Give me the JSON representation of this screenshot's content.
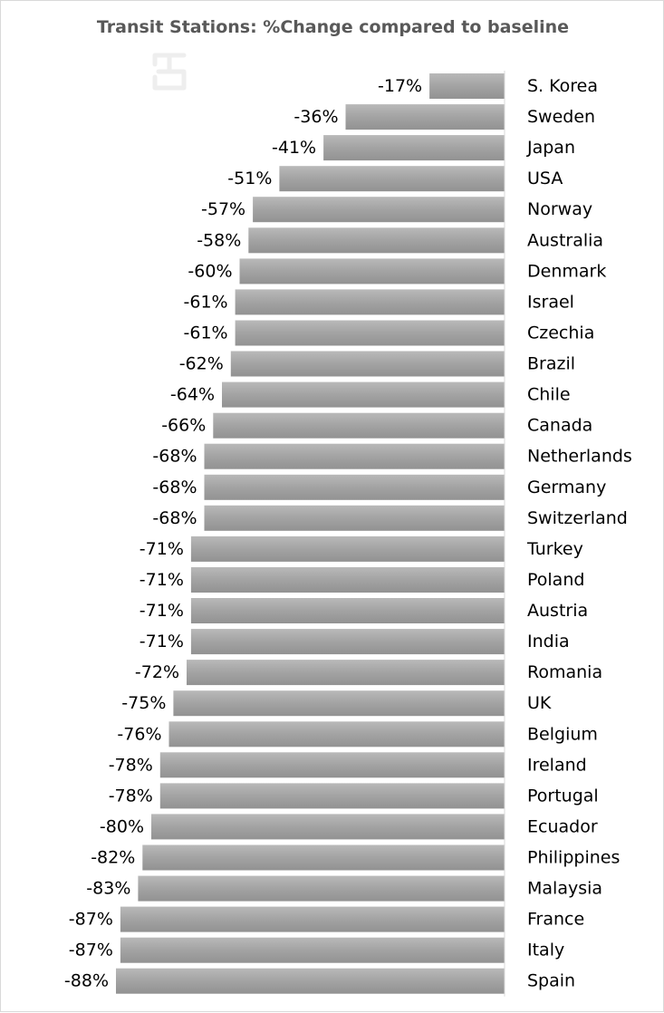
{
  "chart_data": {
    "type": "bar",
    "orientation": "horizontal",
    "title": "Transit Stations: %Change compared to baseline",
    "xlabel": "",
    "ylabel": "",
    "value_format": "percent",
    "xlim": [
      -100,
      0
    ],
    "grid": false,
    "legend": "none",
    "bar_color": "#a6a6a6",
    "categories": [
      "S. Korea",
      "Sweden",
      "Japan",
      "USA",
      "Norway",
      "Australia",
      "Denmark",
      "Israel",
      "Czechia",
      "Brazil",
      "Chile",
      "Canada",
      "Netherlands",
      "Germany",
      "Switzerland",
      "Turkey",
      "Poland",
      "Austria",
      "India",
      "Romania",
      "UK",
      "Belgium",
      "Ireland",
      "Portugal",
      "Ecuador",
      "Philippines",
      "Malaysia",
      "France",
      "Italy",
      "Spain"
    ],
    "values": [
      -17,
      -36,
      -41,
      -51,
      -57,
      -58,
      -60,
      -61,
      -61,
      -62,
      -64,
      -66,
      -68,
      -68,
      -68,
      -71,
      -71,
      -71,
      -71,
      -72,
      -75,
      -76,
      -78,
      -78,
      -80,
      -82,
      -83,
      -87,
      -87,
      -88
    ]
  }
}
